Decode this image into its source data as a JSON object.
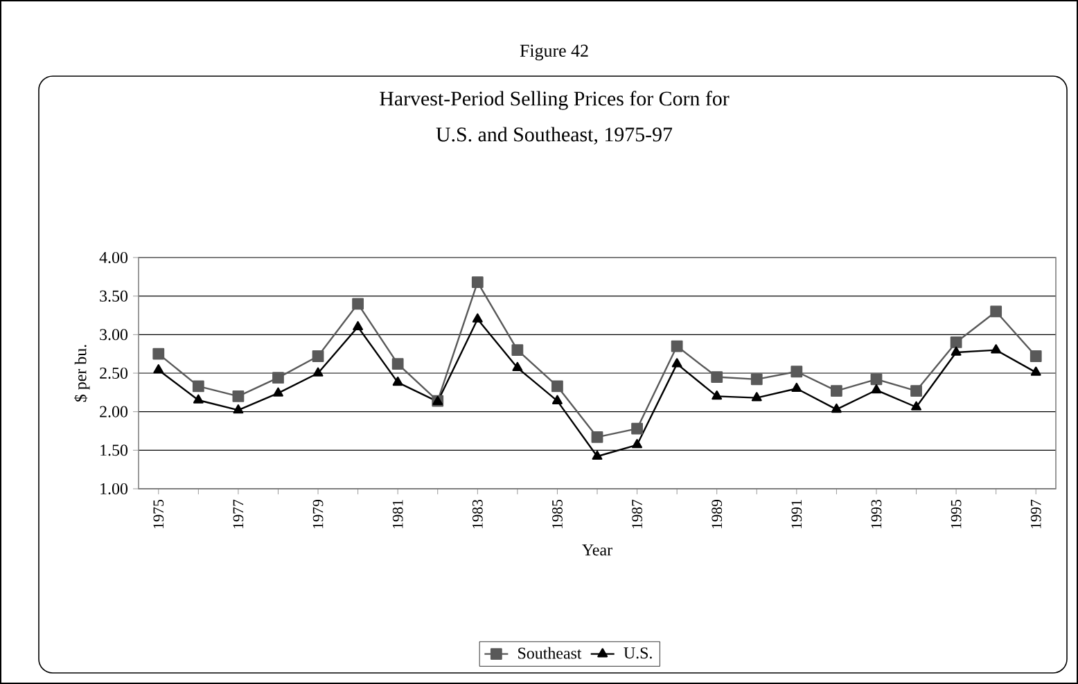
{
  "chart_data": {
    "type": "line",
    "title": "Harvest-Period Selling Prices for Corn for\nU.S. and Southeast, 1975-97",
    "annotations": [
      "Figure 42"
    ],
    "xlabel": "Year",
    "ylabel": "$ per bu.",
    "categories": [
      "1975",
      null,
      "1977",
      null,
      "1979",
      null,
      "1981",
      null,
      "1983",
      null,
      "1985",
      null,
      "1987",
      null,
      "1989",
      null,
      "1991",
      null,
      "1993",
      null,
      "1995",
      null,
      "1997"
    ],
    "series": [
      {
        "name": "Southeast",
        "color": "#595959",
        "marker": "square",
        "values": [
          2.75,
          2.33,
          2.2,
          2.44,
          2.72,
          3.4,
          2.62,
          2.14,
          3.68,
          2.8,
          2.33,
          1.67,
          1.78,
          2.85,
          2.45,
          2.42,
          2.52,
          2.27,
          2.42,
          2.27,
          2.9,
          3.3,
          2.72
        ]
      },
      {
        "name": "U.S.",
        "color": "#000000",
        "marker": "triangle",
        "values": [
          2.54,
          2.15,
          2.02,
          2.24,
          2.5,
          3.1,
          2.38,
          2.13,
          3.2,
          2.57,
          2.14,
          1.42,
          1.57,
          2.62,
          2.2,
          2.18,
          2.3,
          2.03,
          2.28,
          2.06,
          2.77,
          2.8,
          2.51
        ]
      }
    ],
    "ylim": [
      1,
      4
    ],
    "yticks": [
      {
        "value": 1,
        "label": "1.00"
      },
      {
        "value": 1.5,
        "label": "1.50"
      },
      {
        "value": 2,
        "label": "2.00"
      },
      {
        "value": 2.5,
        "label": "2.50"
      },
      {
        "value": 3,
        "label": "3.00"
      },
      {
        "value": 3.5,
        "label": "3.50"
      },
      {
        "value": 4,
        "label": "4.00"
      }
    ],
    "grid": "y",
    "legend": "bottom",
    "line_style": "solid"
  }
}
